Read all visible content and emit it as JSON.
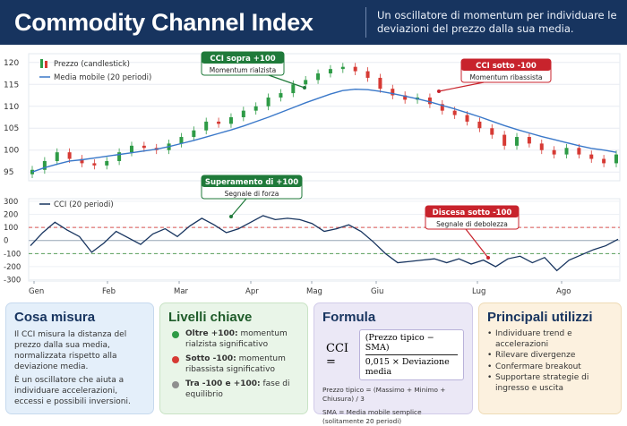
{
  "header": {
    "title": "Commodity Channel Index",
    "subtitle": "Un oscillatore di momentum per individuare le deviazioni del prezzo dalla sua media."
  },
  "chart_data": [
    {
      "type": "line",
      "title": "",
      "legend_position": "top-left",
      "legend": [
        "Prezzo (candlestick)",
        "Media mobile (20 periodi)"
      ],
      "ylim": [
        93,
        122
      ],
      "yticks": [
        95,
        100,
        105,
        110,
        115,
        120
      ],
      "xticks": [
        "Gen",
        "Feb",
        "Mar",
        "Apr",
        "Mag",
        "Giu",
        "Lug",
        "Ago"
      ],
      "series": [
        {
          "name": "Prezzo (candlestick)",
          "values": [
            95.5,
            97.5,
            99.5,
            98,
            97,
            96.5,
            97.5,
            99.5,
            101,
            100.5,
            100,
            101.5,
            103,
            104.5,
            106.5,
            106,
            107.5,
            109,
            110,
            112,
            113,
            115,
            116,
            117.5,
            118.5,
            119,
            118,
            116.5,
            114,
            112.5,
            111.5,
            112,
            110.5,
            109,
            108,
            106.5,
            105,
            103.5,
            101,
            103,
            101.5,
            100,
            99,
            100.5,
            99,
            98,
            97,
            99
          ]
        },
        {
          "name": "Media mobile (20 periodi)",
          "values": [
            95,
            96,
            96.8,
            97.5,
            97.8,
            98.2,
            98.6,
            99,
            99.4,
            99.8,
            100.2,
            100.8,
            101.5,
            102.2,
            103,
            103.8,
            104.6,
            105.5,
            106.5,
            107.5,
            108.6,
            109.7,
            110.8,
            111.8,
            112.8,
            113.6,
            113.9,
            113.8,
            113.4,
            112.9,
            112.3,
            111.7,
            111,
            110.2,
            109.4,
            108.5,
            107.6,
            106.6,
            105.6,
            104.7,
            103.9,
            103.1,
            102.4,
            101.7,
            101,
            100.4,
            100,
            99.5
          ]
        }
      ],
      "annotations": [
        {
          "label": "CCI sopra +100",
          "sub": "Momentum rialzista",
          "color": "#1f7a3a"
        },
        {
          "label": "CCI sotto -100",
          "sub": "Momentum ribassista",
          "color": "#c8232c"
        }
      ]
    },
    {
      "type": "line",
      "title": "",
      "legend": [
        "CCI (20 periodi)"
      ],
      "ylim": [
        -310,
        320
      ],
      "yticks": [
        300,
        200,
        100,
        0,
        -100,
        -200,
        -300
      ],
      "reference_lines": [
        {
          "value": 100,
          "color": "#d9534f"
        },
        {
          "value": 0,
          "color": "#9aa7b8"
        },
        {
          "value": -100,
          "color": "#5aa05a"
        }
      ],
      "series": [
        {
          "name": "CCI (20 periodi)",
          "values": [
            -40,
            60,
            140,
            80,
            30,
            -90,
            -20,
            70,
            20,
            -30,
            50,
            90,
            30,
            110,
            170,
            120,
            60,
            90,
            140,
            190,
            160,
            170,
            160,
            130,
            70,
            90,
            120,
            70,
            -10,
            -100,
            -170,
            -160,
            -150,
            -140,
            -170,
            -140,
            -180,
            -150,
            -200,
            -140,
            -120,
            -170,
            -130,
            -230,
            -150,
            -110,
            -70,
            -40,
            10
          ]
        }
      ],
      "annotations": [
        {
          "label": "Superamento di +100",
          "sub": "Segnale di forza",
          "color": "#1f7a3a"
        },
        {
          "label": "Discesa sotto -100",
          "sub": "Segnale di debolezza",
          "color": "#c8232c"
        }
      ]
    }
  ],
  "cards": {
    "cosa": {
      "title": "Cosa misura",
      "p1": "Il CCI misura la distanza del prezzo dalla sua media, normalizzata rispetto alla deviazione media.",
      "p2": "È un oscillatore che aiuta a individuare accelerazioni, eccessi e possibili inversioni."
    },
    "livelli": {
      "title": "Livelli chiave",
      "items": [
        {
          "bold": "Oltre +100:",
          "text": " momentum rialzista significativo",
          "color": "#2e9b46"
        },
        {
          "bold": "Sotto -100:",
          "text": " momentum ribassista significativo",
          "color": "#d63a34"
        },
        {
          "bold": "Tra -100 e +100:",
          "text": " fase di equilibrio",
          "color": "#8f8f8f"
        }
      ]
    },
    "formula": {
      "title": "Formula",
      "lhs": "CCI =",
      "num": "(Prezzo tipico − SMA)",
      "den": "0,015 × Deviazione media",
      "note1": "Prezzo tipico = (Massimo + Minimo + Chiusura) / 3",
      "note2": "SMA = Media mobile semplice (solitamente 20 periodi)"
    },
    "utilizzi": {
      "title": "Principali utilizzi",
      "items": [
        "Individuare trend e accelerazioni",
        "Rilevare divergenze",
        "Confermare breakout",
        "Supportare strategie di ingresso e uscita"
      ]
    }
  }
}
